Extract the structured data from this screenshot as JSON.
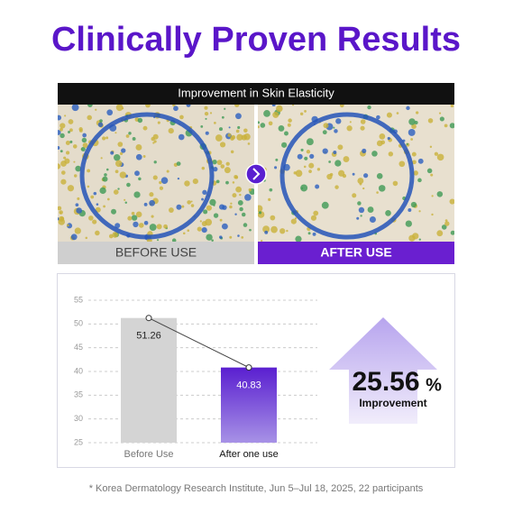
{
  "header": {
    "title": "Clinically Proven Results"
  },
  "comparison": {
    "title": "Improvement in Skin Elasticity",
    "before_label": "BEFORE USE",
    "after_label": "AFTER USE"
  },
  "chart_data": {
    "type": "bar",
    "categories": [
      "Before Use",
      "After one use"
    ],
    "values": [
      51.26,
      40.83
    ],
    "colors": [
      "#d4d4d4",
      "#5a1fd0"
    ],
    "ylim": [
      25,
      55
    ],
    "yticks": [
      25,
      30,
      35,
      40,
      45,
      50,
      55
    ],
    "grid": true
  },
  "stat": {
    "value": "25.56",
    "unit": "%",
    "label": "Improvement"
  },
  "footnote": "* Korea Dermatology Research Institute, Jun 5–Jul 18, 2025, 22 participants"
}
